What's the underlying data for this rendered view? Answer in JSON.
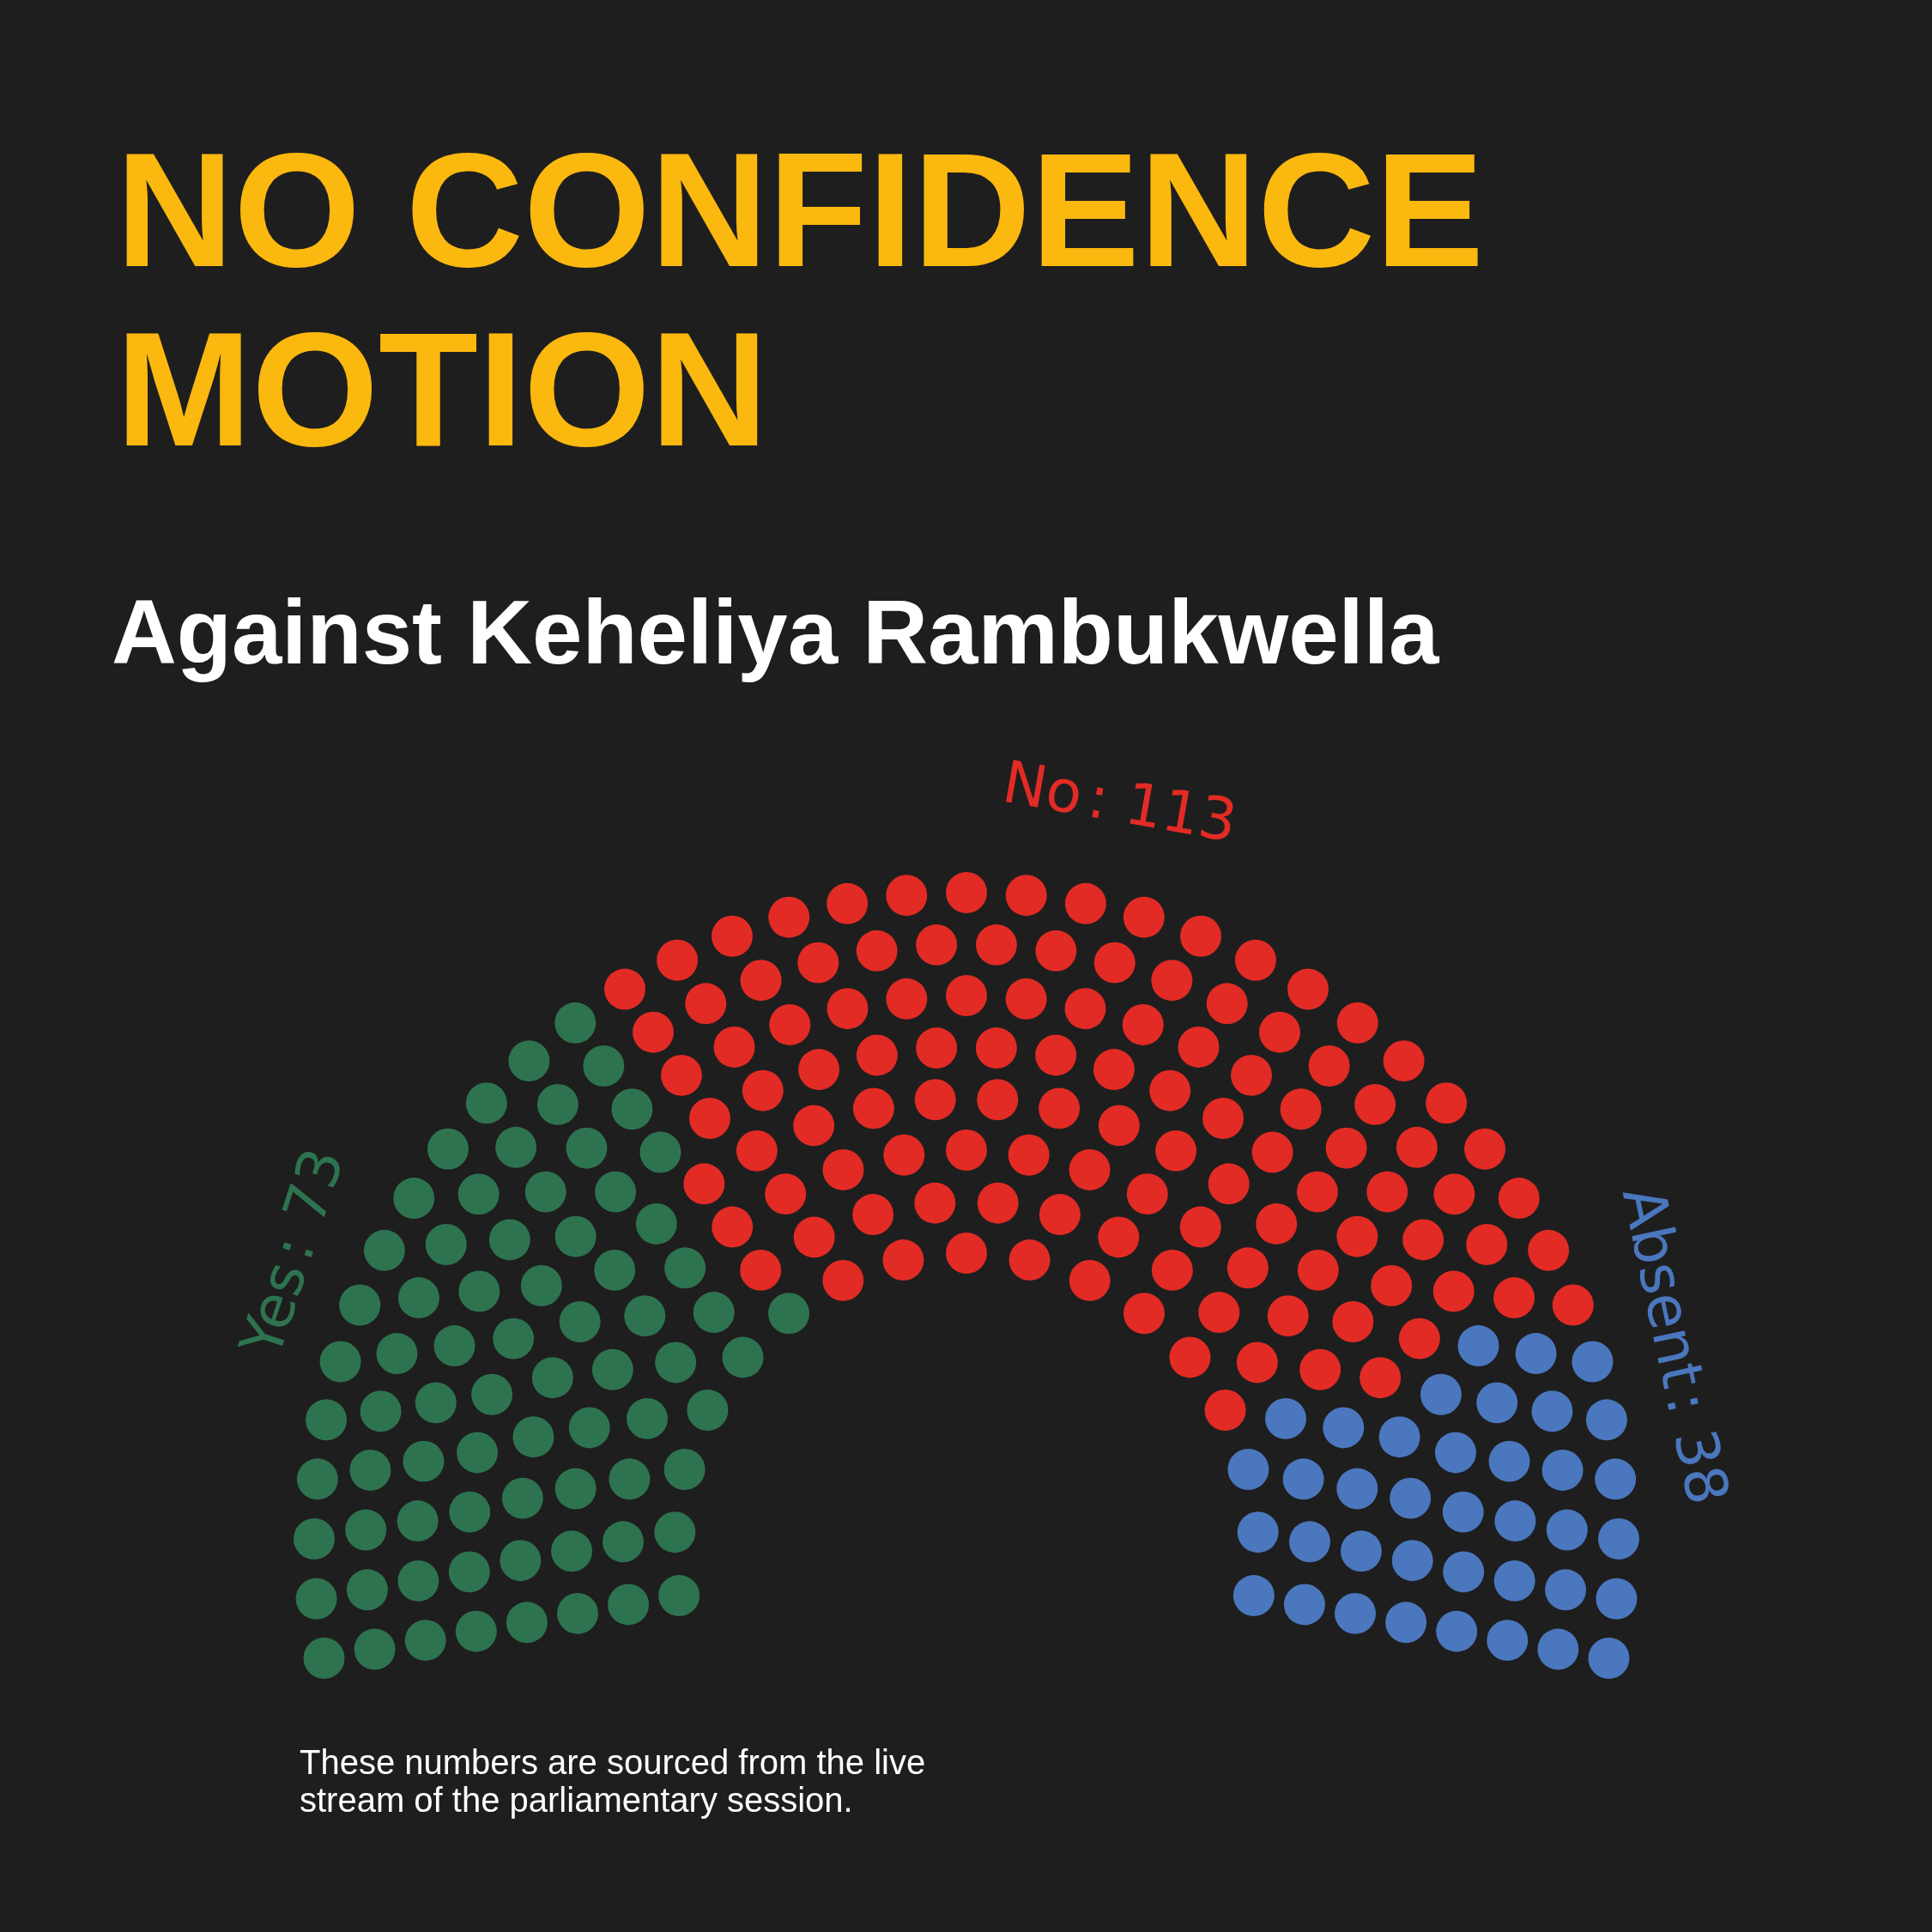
{
  "chart_data": {
    "type": "other",
    "title": "NO CONFIDENCE\nMOTION",
    "subtitle": "Against Keheliya Rambukwella",
    "categories": [
      "Yes",
      "No",
      "Absent"
    ],
    "values": [
      73,
      113,
      38
    ],
    "value_labels": [
      ": 73",
      ": 113",
      ": 38"
    ],
    "colors": [
      "#2e7350",
      "#e22b25",
      "#4a77bd"
    ],
    "annotations": [
      "These numbers are sourced from the live\nstream of the parliamentary session."
    ]
  }
}
